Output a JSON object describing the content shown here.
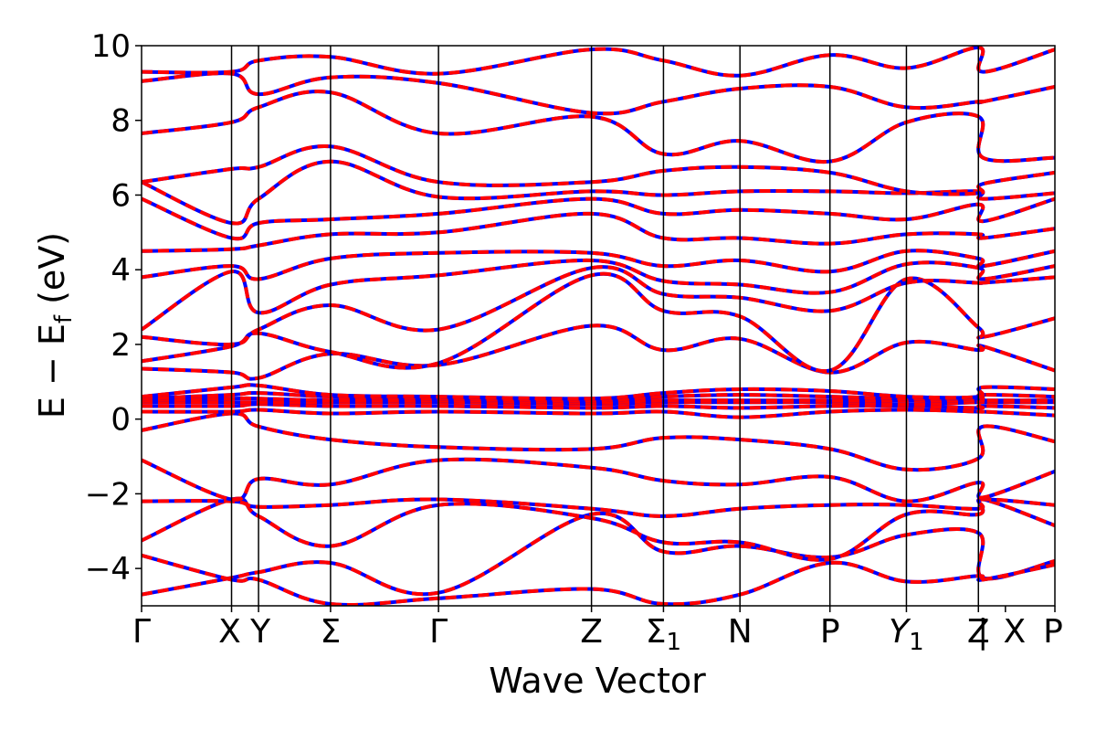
{
  "chart_data": {
    "type": "line",
    "title": "",
    "xlabel": "Wave Vector",
    "ylabel": "E − E",
    "ylabel_sub": "f",
    "ylabel_unit": " (eV)",
    "ylim": [
      -5,
      10
    ],
    "yticks": [
      -4,
      -2,
      0,
      2,
      4,
      6,
      8,
      10
    ],
    "ytick_labels": [
      "−4",
      "−2",
      "0",
      "2",
      "4",
      "6",
      "8",
      "10"
    ],
    "x_segments": [
      {
        "label": "Γ",
        "x": 0.0
      },
      {
        "label": "X",
        "x": 1.0
      },
      {
        "label": "Y",
        "x": 1.3
      },
      {
        "label": "Σ",
        "x": 2.1
      },
      {
        "label": "Γ",
        "x": 3.3
      },
      {
        "label": "Z",
        "x": 5.0
      },
      {
        "label": "Σ",
        "sub": "1",
        "x": 5.8
      },
      {
        "label": "N",
        "x": 6.65
      },
      {
        "label": "P",
        "x": 7.65
      },
      {
        "label": "Y",
        "sub": "1",
        "italic": true,
        "x": 8.5
      },
      {
        "label": "Z",
        "x": 9.3
      },
      {
        "label": "|",
        "x": 9.35
      },
      {
        "label": "X",
        "x": 9.6
      },
      {
        "label": "P",
        "x": 10.15
      }
    ],
    "xlim": [
      0,
      10.15
    ],
    "grid": false,
    "series": [
      {
        "color": "#0000ff",
        "style": "solid"
      },
      {
        "color": "#ff0000",
        "style": "dashed"
      }
    ],
    "bands": [
      [
        [
          0,
          -4.7
        ],
        [
          1,
          -4.25
        ],
        [
          1.3,
          -4.1
        ],
        [
          2.1,
          -3.85
        ],
        [
          3.3,
          -4.65
        ],
        [
          5,
          -2.55
        ],
        [
          5.8,
          -3.55
        ],
        [
          6.65,
          -3.4
        ],
        [
          7.65,
          -3.7
        ],
        [
          8.5,
          -3.1
        ],
        [
          9.3,
          -3.05
        ],
        [
          9.35,
          -4.25
        ],
        [
          10.15,
          -3.8
        ]
      ],
      [
        [
          0,
          -3.65
        ],
        [
          1,
          -4.3
        ],
        [
          1.3,
          -4.3
        ],
        [
          2.1,
          -4.95
        ],
        [
          3.3,
          -4.8
        ],
        [
          5,
          -4.55
        ],
        [
          5.8,
          -4.95
        ],
        [
          6.65,
          -4.7
        ],
        [
          7.65,
          -3.85
        ],
        [
          8.5,
          -4.35
        ],
        [
          9.3,
          -4.2
        ],
        [
          9.35,
          -4.3
        ],
        [
          10.15,
          -3.9
        ]
      ],
      [
        [
          0,
          -3.25
        ],
        [
          1,
          -2.15
        ],
        [
          1.3,
          -2.6
        ],
        [
          2.1,
          -3.4
        ],
        [
          3.3,
          -2.3
        ],
        [
          5,
          -2.65
        ],
        [
          5.8,
          -3.3
        ],
        [
          6.65,
          -3.3
        ],
        [
          7.65,
          -3.75
        ],
        [
          8.5,
          -2.55
        ],
        [
          9.3,
          -2.55
        ],
        [
          9.35,
          -2.15
        ],
        [
          10.15,
          -2.85
        ]
      ],
      [
        [
          0,
          -2.2
        ],
        [
          1,
          -2.2
        ],
        [
          1.3,
          -2.35
        ],
        [
          2.1,
          -2.3
        ],
        [
          3.3,
          -2.15
        ],
        [
          5,
          -2.4
        ],
        [
          5.8,
          -2.6
        ],
        [
          6.65,
          -2.4
        ],
        [
          7.65,
          -2.3
        ],
        [
          8.5,
          -2.3
        ],
        [
          9.3,
          -2.4
        ],
        [
          9.35,
          -2.15
        ],
        [
          10.15,
          -2.3
        ]
      ],
      [
        [
          0,
          -1.1
        ],
        [
          1,
          -2.15
        ],
        [
          1.3,
          -1.6
        ],
        [
          2.1,
          -1.75
        ],
        [
          3.3,
          -1.1
        ],
        [
          5,
          -1.3
        ],
        [
          5.8,
          -1.65
        ],
        [
          6.65,
          -1.75
        ],
        [
          7.65,
          -1.55
        ],
        [
          8.5,
          -2.2
        ],
        [
          9.3,
          -1.7
        ],
        [
          9.35,
          -2.1
        ],
        [
          10.15,
          -1.4
        ]
      ],
      [
        [
          0,
          -0.3
        ],
        [
          1,
          0.15
        ],
        [
          1.3,
          -0.2
        ],
        [
          2.1,
          -0.55
        ],
        [
          3.3,
          -0.75
        ],
        [
          5,
          -0.8
        ],
        [
          5.8,
          -0.5
        ],
        [
          6.65,
          -0.55
        ],
        [
          7.65,
          -0.8
        ],
        [
          8.5,
          -1.35
        ],
        [
          9.3,
          -1.05
        ],
        [
          9.35,
          -0.2
        ],
        [
          10.15,
          -0.6
        ]
      ],
      [
        [
          0,
          0.2
        ],
        [
          1,
          0.2
        ],
        [
          1.3,
          0.25
        ],
        [
          2.1,
          0.15
        ],
        [
          3.3,
          0.2
        ],
        [
          5,
          0.15
        ],
        [
          5.8,
          0.2
        ],
        [
          6.65,
          0.05
        ],
        [
          7.65,
          0.2
        ],
        [
          8.5,
          0.25
        ],
        [
          9.3,
          0.2
        ],
        [
          9.35,
          0.2
        ],
        [
          10.15,
          0.1
        ]
      ],
      [
        [
          0,
          0.35
        ],
        [
          1,
          0.35
        ],
        [
          1.3,
          0.4
        ],
        [
          2.1,
          0.35
        ],
        [
          3.3,
          0.35
        ],
        [
          5,
          0.3
        ],
        [
          5.8,
          0.35
        ],
        [
          6.65,
          0.3
        ],
        [
          7.65,
          0.35
        ],
        [
          8.5,
          0.35
        ],
        [
          9.3,
          0.3
        ],
        [
          9.35,
          0.35
        ],
        [
          10.15,
          0.3
        ]
      ],
      [
        [
          0,
          0.45
        ],
        [
          1,
          0.45
        ],
        [
          1.3,
          0.45
        ],
        [
          2.1,
          0.45
        ],
        [
          3.3,
          0.45
        ],
        [
          5,
          0.4
        ],
        [
          5.8,
          0.45
        ],
        [
          6.65,
          0.45
        ],
        [
          7.65,
          0.45
        ],
        [
          8.5,
          0.4
        ],
        [
          9.3,
          0.45
        ],
        [
          9.35,
          0.45
        ],
        [
          10.15,
          0.45
        ]
      ],
      [
        [
          0,
          0.5
        ],
        [
          1,
          0.55
        ],
        [
          1.3,
          0.55
        ],
        [
          2.1,
          0.5
        ],
        [
          3.3,
          0.5
        ],
        [
          5,
          0.45
        ],
        [
          5.8,
          0.5
        ],
        [
          6.65,
          0.5
        ],
        [
          7.65,
          0.5
        ],
        [
          8.5,
          0.5
        ],
        [
          9.3,
          0.5
        ],
        [
          9.35,
          0.5
        ],
        [
          10.15,
          0.5
        ]
      ],
      [
        [
          0,
          0.55
        ],
        [
          1,
          0.65
        ],
        [
          1.3,
          0.7
        ],
        [
          2.1,
          0.6
        ],
        [
          3.3,
          0.55
        ],
        [
          5,
          0.5
        ],
        [
          5.8,
          0.6
        ],
        [
          6.65,
          0.65
        ],
        [
          7.65,
          0.6
        ],
        [
          8.5,
          0.55
        ],
        [
          9.3,
          0.55
        ],
        [
          9.35,
          0.65
        ],
        [
          10.15,
          0.6
        ]
      ],
      [
        [
          0,
          0.6
        ],
        [
          1,
          0.85
        ],
        [
          1.3,
          0.9
        ],
        [
          2.1,
          0.65
        ],
        [
          3.3,
          0.6
        ],
        [
          5,
          0.55
        ],
        [
          5.8,
          0.7
        ],
        [
          6.65,
          0.8
        ],
        [
          7.65,
          0.75
        ],
        [
          8.5,
          0.6
        ],
        [
          9.3,
          0.6
        ],
        [
          9.35,
          0.85
        ],
        [
          10.15,
          0.8
        ]
      ],
      [
        [
          0,
          1.35
        ],
        [
          1,
          1.25
        ],
        [
          1.3,
          1.1
        ],
        [
          2.1,
          1.75
        ],
        [
          3.3,
          1.45
        ],
        [
          5,
          2.5
        ],
        [
          5.8,
          1.85
        ],
        [
          6.65,
          2.15
        ],
        [
          7.65,
          1.25
        ],
        [
          8.5,
          2.05
        ],
        [
          9.3,
          1.85
        ],
        [
          9.35,
          1.95
        ],
        [
          10.15,
          1.3
        ]
      ],
      [
        [
          0,
          1.55
        ],
        [
          1,
          1.95
        ],
        [
          1.3,
          2.3
        ],
        [
          2.1,
          1.8
        ],
        [
          3.3,
          1.5
        ],
        [
          5,
          3.85
        ],
        [
          5.8,
          2.9
        ],
        [
          6.65,
          2.75
        ],
        [
          7.65,
          1.3
        ],
        [
          8.5,
          3.75
        ],
        [
          9.3,
          2.45
        ],
        [
          9.35,
          2.2
        ],
        [
          10.15,
          2.7
        ]
      ],
      [
        [
          0,
          2.2
        ],
        [
          1,
          2.0
        ],
        [
          1.3,
          2.4
        ],
        [
          2.1,
          3.05
        ],
        [
          3.3,
          2.4
        ],
        [
          5,
          4.05
        ],
        [
          5.8,
          3.35
        ],
        [
          6.65,
          3.25
        ],
        [
          7.65,
          2.9
        ],
        [
          8.5,
          3.65
        ],
        [
          9.3,
          3.65
        ],
        [
          9.35,
          3.65
        ],
        [
          10.15,
          3.8
        ]
      ],
      [
        [
          0,
          2.4
        ],
        [
          1,
          3.95
        ],
        [
          1.3,
          2.85
        ],
        [
          2.1,
          3.6
        ],
        [
          3.3,
          3.85
        ],
        [
          5,
          4.25
        ],
        [
          5.8,
          3.7
        ],
        [
          6.65,
          3.6
        ],
        [
          7.65,
          3.4
        ],
        [
          8.5,
          4.15
        ],
        [
          9.3,
          4.05
        ],
        [
          9.35,
          3.75
        ],
        [
          10.15,
          4.1
        ]
      ],
      [
        [
          0,
          3.8
        ],
        [
          1,
          4.1
        ],
        [
          1.3,
          3.75
        ],
        [
          2.1,
          4.3
        ],
        [
          3.3,
          4.45
        ],
        [
          5,
          4.45
        ],
        [
          5.8,
          4.1
        ],
        [
          6.65,
          4.25
        ],
        [
          7.65,
          3.95
        ],
        [
          8.5,
          4.5
        ],
        [
          9.3,
          4.3
        ],
        [
          9.35,
          4.1
        ],
        [
          10.15,
          4.5
        ]
      ],
      [
        [
          0,
          4.5
        ],
        [
          1,
          4.55
        ],
        [
          1.3,
          4.65
        ],
        [
          2.1,
          4.95
        ],
        [
          3.3,
          5.0
        ],
        [
          5,
          5.5
        ],
        [
          5.8,
          4.85
        ],
        [
          6.65,
          4.85
        ],
        [
          7.65,
          4.7
        ],
        [
          8.5,
          4.95
        ],
        [
          9.3,
          4.95
        ],
        [
          9.35,
          4.85
        ],
        [
          10.15,
          5.1
        ]
      ],
      [
        [
          0,
          5.9
        ],
        [
          1,
          4.85
        ],
        [
          1.3,
          5.25
        ],
        [
          2.1,
          5.35
        ],
        [
          3.3,
          5.5
        ],
        [
          5,
          5.9
        ],
        [
          5.8,
          5.5
        ],
        [
          6.65,
          5.6
        ],
        [
          7.65,
          5.5
        ],
        [
          8.5,
          5.35
        ],
        [
          9.3,
          5.75
        ],
        [
          9.35,
          5.3
        ],
        [
          10.15,
          5.9
        ]
      ],
      [
        [
          0,
          6.35
        ],
        [
          1,
          5.25
        ],
        [
          1.3,
          5.9
        ],
        [
          2.1,
          6.9
        ],
        [
          3.3,
          5.95
        ],
        [
          5,
          6.1
        ],
        [
          5.8,
          6.0
        ],
        [
          6.65,
          6.1
        ],
        [
          7.65,
          6.1
        ],
        [
          8.5,
          6.05
        ],
        [
          9.3,
          6.1
        ],
        [
          9.35,
          5.9
        ],
        [
          10.15,
          6.05
        ]
      ],
      [
        [
          0,
          6.35
        ],
        [
          1,
          6.7
        ],
        [
          1.3,
          6.75
        ],
        [
          2.1,
          7.3
        ],
        [
          3.3,
          6.35
        ],
        [
          5,
          6.35
        ],
        [
          5.8,
          6.65
        ],
        [
          6.65,
          6.75
        ],
        [
          7.65,
          6.6
        ],
        [
          8.5,
          6.1
        ],
        [
          9.3,
          6.05
        ],
        [
          9.35,
          6.3
        ],
        [
          10.15,
          6.6
        ]
      ],
      [
        [
          0,
          7.65
        ],
        [
          1,
          7.95
        ],
        [
          1.3,
          8.35
        ],
        [
          2.1,
          8.75
        ],
        [
          3.3,
          7.65
        ],
        [
          5,
          8.1
        ],
        [
          5.8,
          7.1
        ],
        [
          6.65,
          7.45
        ],
        [
          7.65,
          6.9
        ],
        [
          8.5,
          7.95
        ],
        [
          9.3,
          8.1
        ],
        [
          9.35,
          7.0
        ],
        [
          10.15,
          7.0
        ]
      ],
      [
        [
          0,
          9.05
        ],
        [
          1,
          9.25
        ],
        [
          1.3,
          8.7
        ],
        [
          2.1,
          9.15
        ],
        [
          3.3,
          9.0
        ],
        [
          5,
          8.2
        ],
        [
          5.8,
          8.5
        ],
        [
          6.65,
          8.85
        ],
        [
          7.65,
          8.9
        ],
        [
          8.5,
          8.35
        ],
        [
          9.3,
          8.5
        ],
        [
          9.35,
          8.5
        ],
        [
          10.15,
          8.9
        ]
      ],
      [
        [
          0,
          9.3
        ],
        [
          1,
          9.3
        ],
        [
          1.3,
          9.6
        ],
        [
          2.1,
          9.7
        ],
        [
          3.3,
          9.25
        ],
        [
          5,
          9.9
        ],
        [
          5.8,
          9.6
        ],
        [
          6.65,
          9.2
        ],
        [
          7.65,
          9.75
        ],
        [
          8.5,
          9.4
        ],
        [
          9.3,
          9.95
        ],
        [
          9.35,
          9.3
        ],
        [
          10.15,
          9.9
        ]
      ]
    ]
  }
}
